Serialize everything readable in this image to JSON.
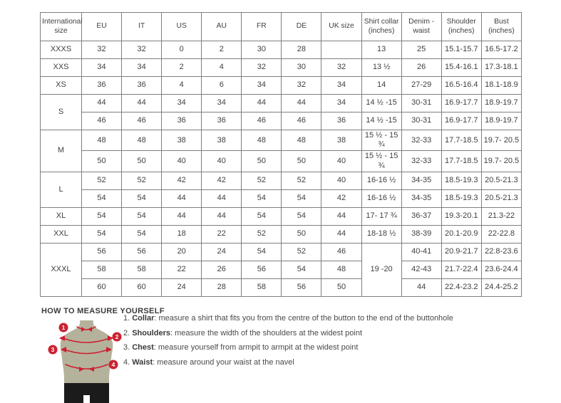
{
  "colors": {
    "accent_red": "#cc2130",
    "mannequin_body": "#b5b29c",
    "shorts_black": "#1b1b1b",
    "table_border": "#7f7f7f",
    "text": "#3f3f3f"
  },
  "table": {
    "headers": [
      "International size",
      "EU",
      "IT",
      "US",
      "AU",
      "FR",
      "DE",
      "UK size",
      "Shirt collar (inches)",
      "Denim - waist",
      "Shoulder (inches)",
      "Bust (inches)"
    ],
    "groups": [
      {
        "size": "XXXS",
        "rows": [
          {
            "cells": [
              "32",
              "32",
              "0",
              "2",
              "30",
              "28",
              "",
              "13",
              "25",
              "15.1-15.7",
              "16.5-17.2"
            ]
          }
        ]
      },
      {
        "size": "XXS",
        "rows": [
          {
            "cells": [
              "34",
              "34",
              "2",
              "4",
              "32",
              "30",
              "32",
              "13 ½",
              "26",
              "15.4-16.1",
              "17.3-18.1"
            ]
          }
        ]
      },
      {
        "size": "XS",
        "rows": [
          {
            "cells": [
              "36",
              "36",
              "4",
              "6",
              "34",
              "32",
              "34",
              "14",
              "27-29",
              "16.5-16.4",
              "18.1-18.9"
            ]
          }
        ]
      },
      {
        "size": "S",
        "rows": [
          {
            "cells": [
              "44",
              "44",
              "34",
              "34",
              "44",
              "44",
              "34",
              "14 ½ -15",
              "30-31",
              "16.9-17.7",
              "18.9-19.7"
            ]
          },
          {
            "cells": [
              "46",
              "46",
              "36",
              "36",
              "46",
              "46",
              "36",
              "14 ½ -15",
              "30-31",
              "16.9-17.7",
              "18.9-19.7"
            ]
          }
        ]
      },
      {
        "size": "M",
        "rows": [
          {
            "cells": [
              "48",
              "48",
              "38",
              "38",
              "48",
              "48",
              "38",
              "15 ½ - 15 ¾",
              "32-33",
              "17.7-18.5",
              "19.7- 20.5"
            ]
          },
          {
            "cells": [
              "50",
              "50",
              "40",
              "40",
              "50",
              "50",
              "40",
              "15 ½ - 15 ¾",
              "32-33",
              "17.7-18.5",
              "19.7- 20.5"
            ]
          }
        ]
      },
      {
        "size": "L",
        "rows": [
          {
            "cells": [
              "52",
              "52",
              "42",
              "42",
              "52",
              "52",
              "40",
              "16-16 ½",
              "34-35",
              "18.5-19.3",
              "20.5-21.3"
            ]
          },
          {
            "cells": [
              "54",
              "54",
              "44",
              "44",
              "54",
              "54",
              "42",
              "16-16 ½",
              "34-35",
              "18.5-19.3",
              "20.5-21.3"
            ]
          }
        ]
      },
      {
        "size": "XL",
        "rows": [
          {
            "cells": [
              "54",
              "54",
              "44",
              "44",
              "54",
              "54",
              "44",
              "17- 17 ¾",
              "36-37",
              "19.3-20.1",
              "21.3-22"
            ]
          }
        ]
      },
      {
        "size": "XXL",
        "rows": [
          {
            "cells": [
              "54",
              "54",
              "18",
              "22",
              "52",
              "50",
              "44",
              "18-18 ½",
              "38-39",
              "20.1-20.9",
              "22-22.8"
            ]
          }
        ]
      },
      {
        "size": "XXXL",
        "merged_collar": "19 -20",
        "rows": [
          {
            "cells": [
              "56",
              "56",
              "20",
              "24",
              "54",
              "52",
              "46",
              "40-41",
              "20.9-21.7",
              "22.8-23.6"
            ]
          },
          {
            "cells": [
              "58",
              "58",
              "22",
              "26",
              "56",
              "54",
              "48",
              "42-43",
              "21.7-22.4",
              "23.6-24.4"
            ]
          },
          {
            "cells": [
              "60",
              "60",
              "24",
              "28",
              "58",
              "56",
              "50",
              "44",
              "22.4-23.2",
              "24.4-25.2"
            ]
          }
        ]
      }
    ]
  },
  "measure": {
    "title": "HOW TO MEASURE YOURSELF",
    "items": [
      {
        "num": "1.",
        "label": "Collar",
        "text": ": measure a shirt that fits you from the centre of the button to the end of the buttonhole"
      },
      {
        "num": "2.",
        "label": "Shoulders",
        "text": ": measure the width of the shoulders at the widest point"
      },
      {
        "num": "3.",
        "label": "Chest",
        "text": ": measure yourself from armpit to armpit at the widest point"
      },
      {
        "num": "4.",
        "label": "Waist",
        "text": ": measure around your waist at the navel"
      }
    ]
  },
  "figure": {
    "markers": [
      "1",
      "2",
      "3",
      "4"
    ]
  }
}
